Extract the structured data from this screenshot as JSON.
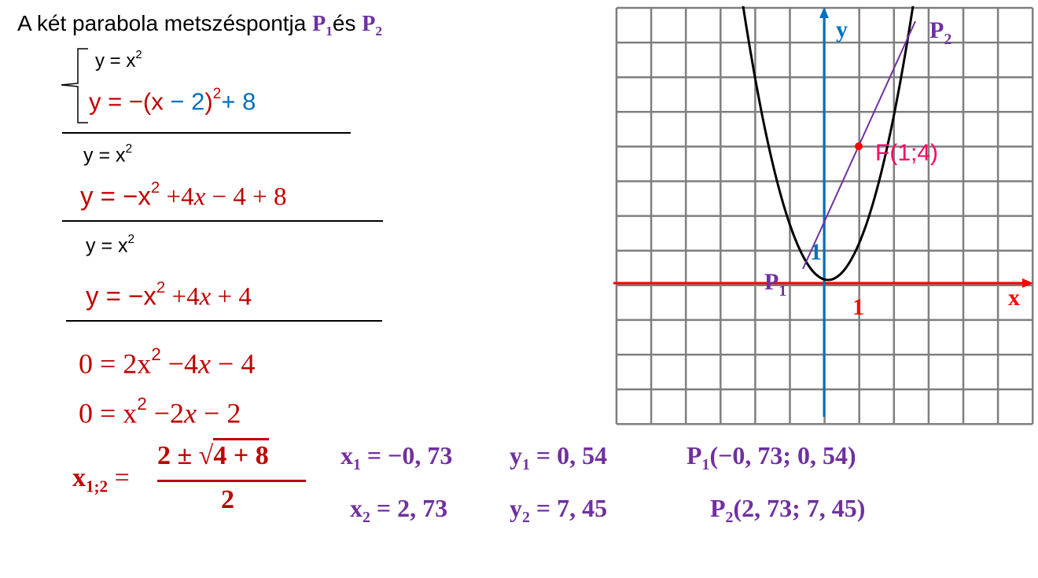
{
  "colors": {
    "black": "#000000",
    "red": "#C00000",
    "blue": "#0070C0",
    "purple": "#7030A0",
    "pink": "#FF0066",
    "axis_x": "#FF0000",
    "axis_y": "#0070C0",
    "grid": "#7F7F7F"
  },
  "title": [
    {
      "text": "A két parabola metszéspontja ",
      "color": "black"
    },
    {
      "text": "P",
      "color": "purple",
      "serif": true,
      "bold": true
    },
    {
      "text": "1",
      "color": "purple",
      "serif": true,
      "bold": true,
      "sub": true
    },
    {
      "text": "és ",
      "color": "black"
    },
    {
      "text": "P",
      "color": "purple",
      "serif": true,
      "bold": true
    },
    {
      "text": "2",
      "color": "purple",
      "serif": true,
      "bold": true,
      "sub": true
    }
  ],
  "equations": {
    "eq1": [
      {
        "text": "y = x",
        "color": "black"
      },
      {
        "text": "2",
        "color": "black",
        "sup": true
      }
    ],
    "eq2": [
      {
        "text": "y = −(x ",
        "color": "red"
      },
      {
        "text": "− 2",
        "color": "blue"
      },
      {
        "text": ")",
        "color": "red"
      },
      {
        "text": "2",
        "color": "red",
        "sup": true
      },
      {
        "text": "+ 8",
        "color": "blue"
      }
    ],
    "eq3": [
      {
        "text": "y = x",
        "color": "black"
      },
      {
        "text": "2",
        "color": "black",
        "sup": true
      }
    ],
    "eq4": [
      {
        "text": "y = −x",
        "color": "red"
      },
      {
        "text": "2",
        "color": "red",
        "sup": true
      },
      {
        "text": " +4",
        "color": "red",
        "serif": true
      },
      {
        "text": "x",
        "color": "red",
        "serif": true,
        "italic": true
      },
      {
        "text": " − 4 + 8",
        "color": "red",
        "serif": true
      }
    ],
    "eq5": [
      {
        "text": "y = x",
        "color": "black"
      },
      {
        "text": "2",
        "color": "black",
        "sup": true
      }
    ],
    "eq6": [
      {
        "text": "y = −x",
        "color": "red"
      },
      {
        "text": "2",
        "color": "red",
        "sup": true
      },
      {
        "text": " +4",
        "color": "red",
        "serif": true
      },
      {
        "text": "x",
        "color": "red",
        "serif": true,
        "italic": true
      },
      {
        "text": " + 4",
        "color": "red",
        "serif": true
      }
    ],
    "eq7": [
      {
        "text": "0 = 2x",
        "color": "red",
        "serif": true
      },
      {
        "text": "2",
        "color": "red",
        "sup": true
      },
      {
        "text": " −4",
        "color": "red",
        "serif": true
      },
      {
        "text": "x",
        "color": "red",
        "serif": true,
        "italic": true
      },
      {
        "text": " − 4",
        "color": "red",
        "serif": true
      }
    ],
    "eq8": [
      {
        "text": "0 = x",
        "color": "red",
        "serif": true
      },
      {
        "text": "2",
        "color": "red",
        "sup": true
      },
      {
        "text": " −2",
        "color": "red",
        "serif": true
      },
      {
        "text": "x",
        "color": "red",
        "serif": true,
        "italic": true
      },
      {
        "text": " − 2",
        "color": "red",
        "serif": true
      }
    ],
    "xlab": [
      {
        "text": "x",
        "color": "red",
        "serif": true,
        "bold": true
      },
      {
        "text": "1;2",
        "color": "red",
        "serif": true,
        "bold": true,
        "sub": true
      },
      {
        "text": " =",
        "color": "red",
        "serif": true
      }
    ],
    "num": [
      {
        "text": "2 ± √",
        "color": "red",
        "serif": true,
        "bold": true
      },
      {
        "text": "4 + 8",
        "color": "red",
        "serif": true,
        "bold": true,
        "overline": true
      }
    ],
    "den": [
      {
        "text": "2",
        "color": "red",
        "serif": true,
        "bold": true
      }
    ]
  },
  "results": {
    "r1": [
      {
        "text": "x",
        "color": "purple",
        "serif": true,
        "bold": true
      },
      {
        "text": "1",
        "color": "purple",
        "serif": true,
        "bold": true,
        "sub": true
      },
      {
        "text": " = −0, 73",
        "color": "purple",
        "serif": true,
        "bold": true
      }
    ],
    "r2": [
      {
        "text": "y",
        "color": "purple",
        "serif": true,
        "bold": true
      },
      {
        "text": "1",
        "color": "purple",
        "serif": true,
        "bold": true,
        "sub": true
      },
      {
        "text": " = 0, 54",
        "color": "purple",
        "serif": true,
        "bold": true
      }
    ],
    "r3": [
      {
        "text": "P",
        "color": "purple",
        "serif": true,
        "bold": true
      },
      {
        "text": "1",
        "color": "purple",
        "serif": true,
        "bold": true,
        "sub": true
      },
      {
        "text": "(−0, 73; 0, 54)",
        "color": "purple",
        "serif": true,
        "bold": true
      }
    ],
    "r4": [
      {
        "text": "x",
        "color": "purple",
        "serif": true,
        "bold": true
      },
      {
        "text": "2",
        "color": "purple",
        "serif": true,
        "bold": true,
        "sub": true
      },
      {
        "text": " = 2, 73",
        "color": "purple",
        "serif": true,
        "bold": true
      }
    ],
    "r5": [
      {
        "text": "y",
        "color": "purple",
        "serif": true,
        "bold": true
      },
      {
        "text": "2",
        "color": "purple",
        "serif": true,
        "bold": true,
        "sub": true
      },
      {
        "text": " = 7, 45",
        "color": "purple",
        "serif": true,
        "bold": true
      }
    ],
    "r6": [
      {
        "text": "P",
        "color": "purple",
        "serif": true,
        "bold": true
      },
      {
        "text": "2",
        "color": "purple",
        "serif": true,
        "bold": true,
        "sub": true
      },
      {
        "text": "(2, 73; 7, 45)",
        "color": "purple",
        "serif": true,
        "bold": true
      }
    ]
  },
  "graph": {
    "x_axis_label": "x",
    "y_axis_label": "y",
    "x_unit_label": "1",
    "y_unit_label": "1",
    "point_f_label": "F(1;4)",
    "p1_label": "P",
    "p1_sub": "1",
    "p2_label": "P",
    "p2_sub": "2",
    "grid": true,
    "x_range": [
      -6,
      6
    ],
    "y_range": [
      -4,
      8
    ]
  }
}
